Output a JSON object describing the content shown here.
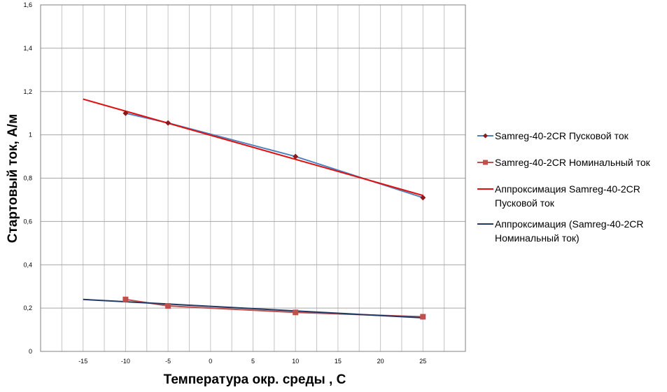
{
  "chart_data": {
    "type": "line",
    "title": "",
    "xlabel": "Температура окр. среды , С",
    "ylabel": "Стартовый ток, А/м",
    "xlim": [
      -20,
      30
    ],
    "ylim": [
      0,
      1.6
    ],
    "x_ticks": [
      "-15",
      "-10",
      "-5",
      "0",
      "5",
      "10",
      "15",
      "20",
      "25"
    ],
    "y_ticks": [
      "0",
      "0,2",
      "0,4",
      "0,6",
      "0,8",
      "1",
      "1,2",
      "1,4",
      "1,6"
    ],
    "grid": true,
    "legend_position": "right",
    "series": [
      {
        "name": "Samreg-40-2CR Пусковой ток",
        "kind": "data",
        "marker": "diamond",
        "line_color": "#4f81bd",
        "marker_color": "#8b1a1a",
        "x": [
          -10,
          -5,
          10,
          25
        ],
        "y": [
          1.1,
          1.055,
          0.9,
          0.71
        ]
      },
      {
        "name": "Samreg-40-2CR Номинальный ток",
        "kind": "data",
        "marker": "square",
        "line_color": "#c0504d",
        "marker_color": "#c0504d",
        "x": [
          -10,
          -5,
          10,
          25
        ],
        "y": [
          0.24,
          0.21,
          0.18,
          0.16
        ]
      },
      {
        "name": "Аппроксимация Samreg-40-2CR Пусковой ток",
        "kind": "trendline",
        "line_color": "#e01010",
        "x": [
          -15,
          25
        ],
        "y": [
          1.165,
          0.72
        ]
      },
      {
        "name": "Аппроксимация (Samreg-40-2CR Номинальный ток)",
        "kind": "trendline",
        "line_color": "#1f3864",
        "x": [
          -15,
          25
        ],
        "y": [
          0.24,
          0.155
        ]
      }
    ]
  }
}
